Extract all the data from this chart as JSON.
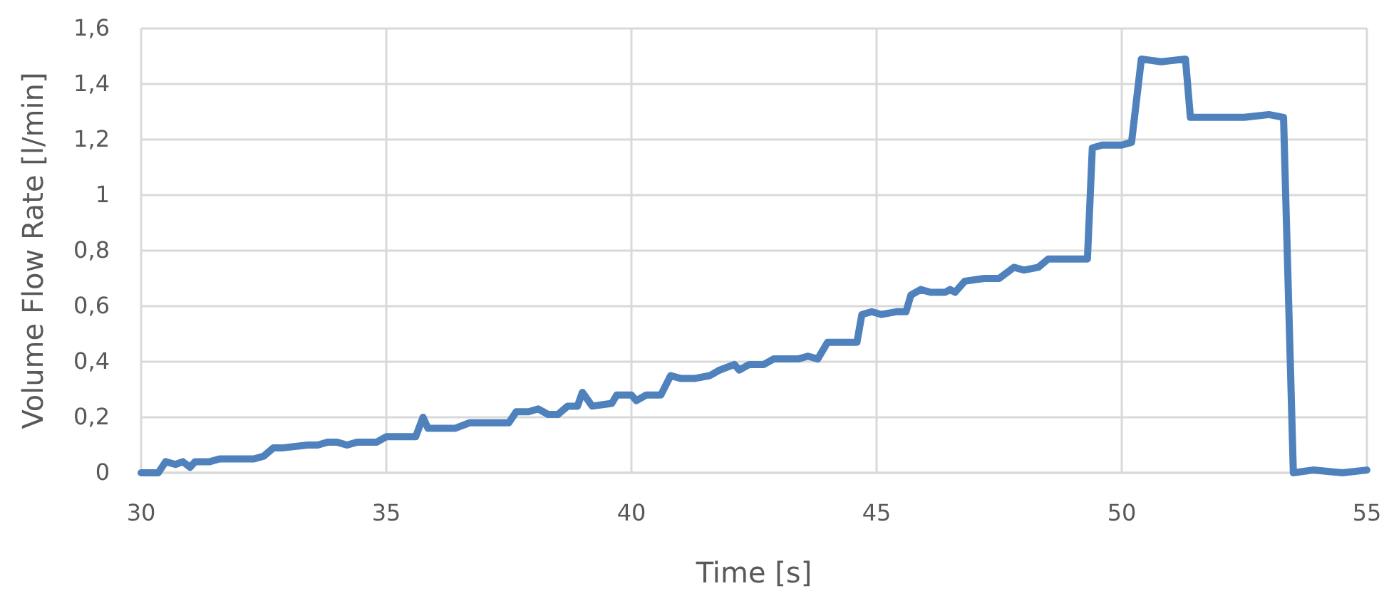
{
  "chart_data": {
    "type": "line",
    "xlabel": "Time [s]",
    "ylabel": "Volume Flow Rate [l/min]",
    "grid": true,
    "line_style": "solid",
    "marker": "none",
    "xlim": [
      30,
      55
    ],
    "xticks": [
      30,
      35,
      40,
      45,
      50,
      55
    ],
    "ylim": [
      0,
      1.6
    ],
    "yticks": [
      0,
      {
        "value": 0.2,
        "label": "0,2"
      },
      {
        "value": 0.4,
        "label": "0,4"
      },
      {
        "value": 0.6,
        "label": "0,6"
      },
      {
        "value": 0.8,
        "label": "0,8"
      },
      1,
      {
        "value": 1.2,
        "label": "1,2"
      },
      {
        "value": 1.4,
        "label": "1,4"
      },
      {
        "value": 1.6,
        "label": "1,6"
      }
    ],
    "x": [
      30,
      30.35,
      30.5,
      30.7,
      30.85,
      31.0,
      31.1,
      31.4,
      31.6,
      32.3,
      32.5,
      32.7,
      32.9,
      33.4,
      33.6,
      33.8,
      34.0,
      34.2,
      34.4,
      34.8,
      35.0,
      35.1,
      35.6,
      35.75,
      35.85,
      36.4,
      36.7,
      37.5,
      37.65,
      37.9,
      38.1,
      38.3,
      38.5,
      38.7,
      38.9,
      39.0,
      39.2,
      39.6,
      39.7,
      40.0,
      40.1,
      40.3,
      40.6,
      40.8,
      41.0,
      41.3,
      41.6,
      41.8,
      42.1,
      42.2,
      42.4,
      42.7,
      42.9,
      43.4,
      43.6,
      43.8,
      44.0,
      44.6,
      44.7,
      44.9,
      45.1,
      45.4,
      45.6,
      45.7,
      45.9,
      46.1,
      46.4,
      46.5,
      46.6,
      46.8,
      47.2,
      47.5,
      47.8,
      48.0,
      48.3,
      48.5,
      49.3,
      49.4,
      49.6,
      50.0,
      50.2,
      50.4,
      50.8,
      51.3,
      51.4,
      51.6,
      52.2,
      52.5,
      53.0,
      53.3,
      53.5,
      53.9,
      54.5,
      55.0
    ],
    "series": [
      {
        "color": "#4f81bd",
        "values": [
          0,
          0,
          0.04,
          0.03,
          0.04,
          0.02,
          0.04,
          0.04,
          0.05,
          0.05,
          0.06,
          0.09,
          0.09,
          0.1,
          0.1,
          0.11,
          0.11,
          0.1,
          0.11,
          0.11,
          0.13,
          0.13,
          0.13,
          0.2,
          0.16,
          0.16,
          0.18,
          0.18,
          0.22,
          0.22,
          0.23,
          0.21,
          0.21,
          0.24,
          0.24,
          0.29,
          0.24,
          0.25,
          0.28,
          0.28,
          0.26,
          0.28,
          0.28,
          0.35,
          0.34,
          0.34,
          0.35,
          0.37,
          0.39,
          0.37,
          0.39,
          0.39,
          0.41,
          0.41,
          0.42,
          0.41,
          0.47,
          0.47,
          0.57,
          0.58,
          0.57,
          0.58,
          0.58,
          0.64,
          0.66,
          0.65,
          0.65,
          0.66,
          0.65,
          0.69,
          0.7,
          0.7,
          0.74,
          0.73,
          0.74,
          0.77,
          0.77,
          1.17,
          1.18,
          1.18,
          1.19,
          1.49,
          1.48,
          1.49,
          1.28,
          1.28,
          1.28,
          1.28,
          1.29,
          1.28,
          0,
          0.01,
          0,
          0.01
        ]
      }
    ]
  }
}
